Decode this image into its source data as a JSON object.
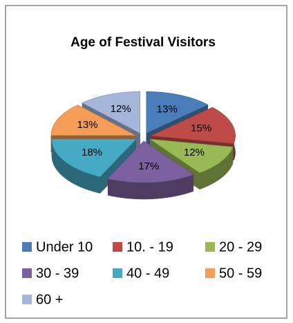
{
  "chart_data": {
    "type": "pie3d",
    "title": "Age of Festival Visitors",
    "categories": [
      "Under 10",
      "10. - 19",
      "20 - 29",
      "30 - 39",
      "40 - 49",
      "50 - 59",
      "60 +"
    ],
    "values": [
      13,
      15,
      12,
      17,
      18,
      13,
      12
    ],
    "value_labels": [
      "13%",
      "15%",
      "12%",
      "17%",
      "18%",
      "13%",
      "12%"
    ],
    "colors": [
      "#4a7ebb",
      "#be4b48",
      "#98b954",
      "#7d60a0",
      "#46aac5",
      "#f59d56",
      "#a5b6da"
    ],
    "legend": "bottom"
  }
}
